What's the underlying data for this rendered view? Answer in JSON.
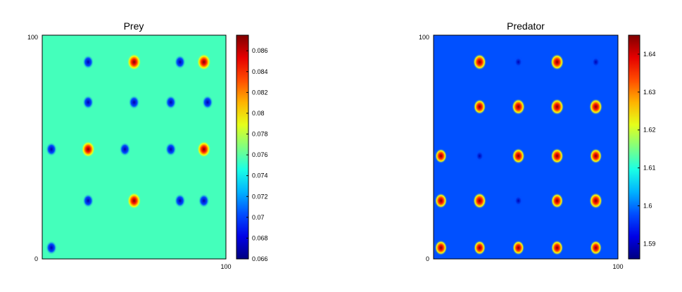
{
  "chart_data": [
    {
      "type": "heatmap",
      "title": "Prey",
      "xlim": [
        0,
        100
      ],
      "ylim": [
        0,
        100
      ],
      "x_ticks": [
        "0",
        "100"
      ],
      "y_ticks": [
        "0",
        "100"
      ],
      "x_start_label": "",
      "colorbar": {
        "range": [
          0.066,
          0.0875
        ],
        "ticks": [
          "0.066",
          "0.068",
          "0.07",
          "0.072",
          "0.074",
          "0.076",
          "0.078",
          "0.08",
          "0.082",
          "0.084",
          "0.086"
        ],
        "colormap": "jet"
      },
      "background_value": 0.0755,
      "peaks": [
        {
          "x": 50,
          "y": 88,
          "value": 0.087
        },
        {
          "x": 88,
          "y": 88,
          "value": 0.087
        },
        {
          "x": 25,
          "y": 49,
          "value": 0.086
        },
        {
          "x": 88,
          "y": 49,
          "value": 0.086
        },
        {
          "x": 50,
          "y": 26,
          "value": 0.0865
        }
      ],
      "troughs": [
        {
          "x": 25,
          "y": 88
        },
        {
          "x": 75,
          "y": 88
        },
        {
          "x": 25,
          "y": 70
        },
        {
          "x": 50,
          "y": 70
        },
        {
          "x": 70,
          "y": 70
        },
        {
          "x": 90,
          "y": 70
        },
        {
          "x": 5,
          "y": 49
        },
        {
          "x": 45,
          "y": 49
        },
        {
          "x": 70,
          "y": 49
        },
        {
          "x": 25,
          "y": 26
        },
        {
          "x": 75,
          "y": 26
        },
        {
          "x": 88,
          "y": 26
        },
        {
          "x": 5,
          "y": 5
        }
      ]
    },
    {
      "type": "heatmap",
      "title": "Predator",
      "xlim": [
        0,
        100
      ],
      "ylim": [
        0,
        100
      ],
      "x_ticks": [
        "0",
        "100"
      ],
      "y_ticks": [
        "0",
        "100"
      ],
      "x_start_label": "",
      "colorbar": {
        "range": [
          1.586,
          1.645
        ],
        "ticks": [
          "1.59",
          "1.6",
          "1.61",
          "1.62",
          "1.63",
          "1.64"
        ],
        "colormap": "jet"
      },
      "background_value": 1.598,
      "peaks": [
        {
          "x": 25,
          "y": 88,
          "value": 1.64
        },
        {
          "x": 67,
          "y": 88,
          "value": 1.64
        },
        {
          "x": 25,
          "y": 68,
          "value": 1.63
        },
        {
          "x": 46,
          "y": 68,
          "value": 1.64
        },
        {
          "x": 67,
          "y": 68,
          "value": 1.642
        },
        {
          "x": 88,
          "y": 68,
          "value": 1.64
        },
        {
          "x": 4,
          "y": 46,
          "value": 1.625
        },
        {
          "x": 46,
          "y": 46,
          "value": 1.635
        },
        {
          "x": 67,
          "y": 46,
          "value": 1.635
        },
        {
          "x": 88,
          "y": 46,
          "value": 1.63
        },
        {
          "x": 4,
          "y": 26,
          "value": 1.63
        },
        {
          "x": 25,
          "y": 26,
          "value": 1.64
        },
        {
          "x": 67,
          "y": 26,
          "value": 1.63
        },
        {
          "x": 88,
          "y": 26,
          "value": 1.638
        },
        {
          "x": 4,
          "y": 5,
          "value": 1.63
        },
        {
          "x": 25,
          "y": 5,
          "value": 1.625
        },
        {
          "x": 46,
          "y": 5,
          "value": 1.625
        },
        {
          "x": 67,
          "y": 5,
          "value": 1.628
        },
        {
          "x": 88,
          "y": 5,
          "value": 1.625
        }
      ],
      "troughs": [
        {
          "x": 46,
          "y": 88
        },
        {
          "x": 88,
          "y": 88
        },
        {
          "x": 25,
          "y": 46
        },
        {
          "x": 46,
          "y": 26
        }
      ]
    }
  ]
}
